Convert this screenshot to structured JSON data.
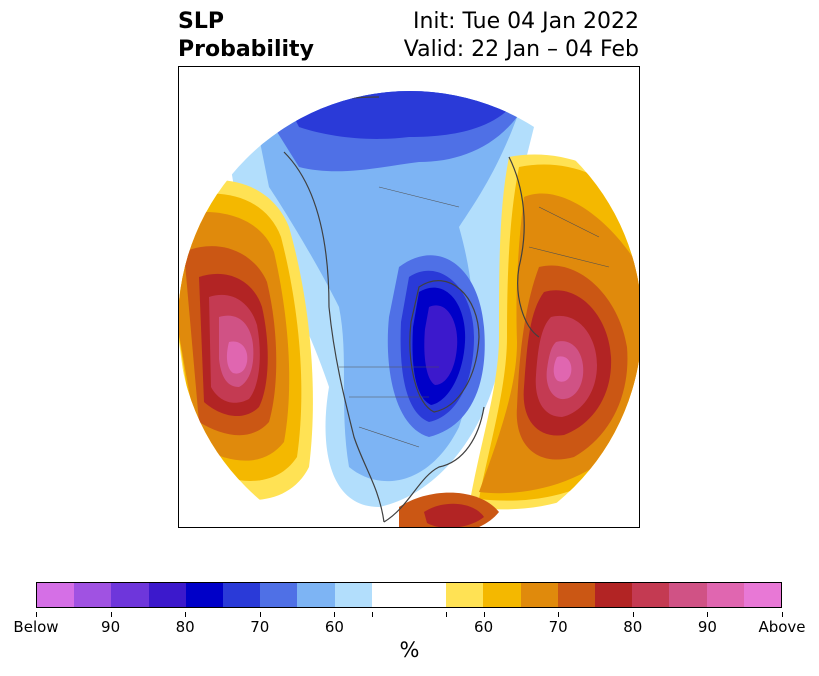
{
  "title": {
    "variable": "SLP",
    "field": "Probability",
    "init": "Init: Tue 04 Jan 2022",
    "valid": "Valid: 22 Jan – 04 Feb"
  },
  "map": {
    "projection": "north-polar-stereographic",
    "anomalies": [
      {
        "name": "north-pacific-high",
        "sign": "above",
        "peak": "Above"
      },
      {
        "name": "north-atlantic-high",
        "sign": "above",
        "peak": "Above"
      },
      {
        "name": "canada-greenland-low",
        "sign": "below",
        "peak": "80"
      },
      {
        "name": "arctic-siberia-low",
        "sign": "below",
        "peak": "80"
      }
    ]
  },
  "colorbar": {
    "colors": [
      "#d56fe6",
      "#a052e2",
      "#6e36db",
      "#3c19cc",
      "#0000c8",
      "#2a3ad8",
      "#4f70e6",
      "#7db4f4",
      "#b2defc",
      "#ffffff",
      "#ffffff",
      "#ffe254",
      "#f4b800",
      "#e08a0c",
      "#cb5714",
      "#b22424",
      "#c43a52",
      "#d05285",
      "#e066b0",
      "#e878d6"
    ],
    "tick_labels": [
      "Below",
      "90",
      "80",
      "70",
      "60",
      "",
      "",
      "60",
      "70",
      "80",
      "90",
      "Above"
    ],
    "unit": "%"
  }
}
